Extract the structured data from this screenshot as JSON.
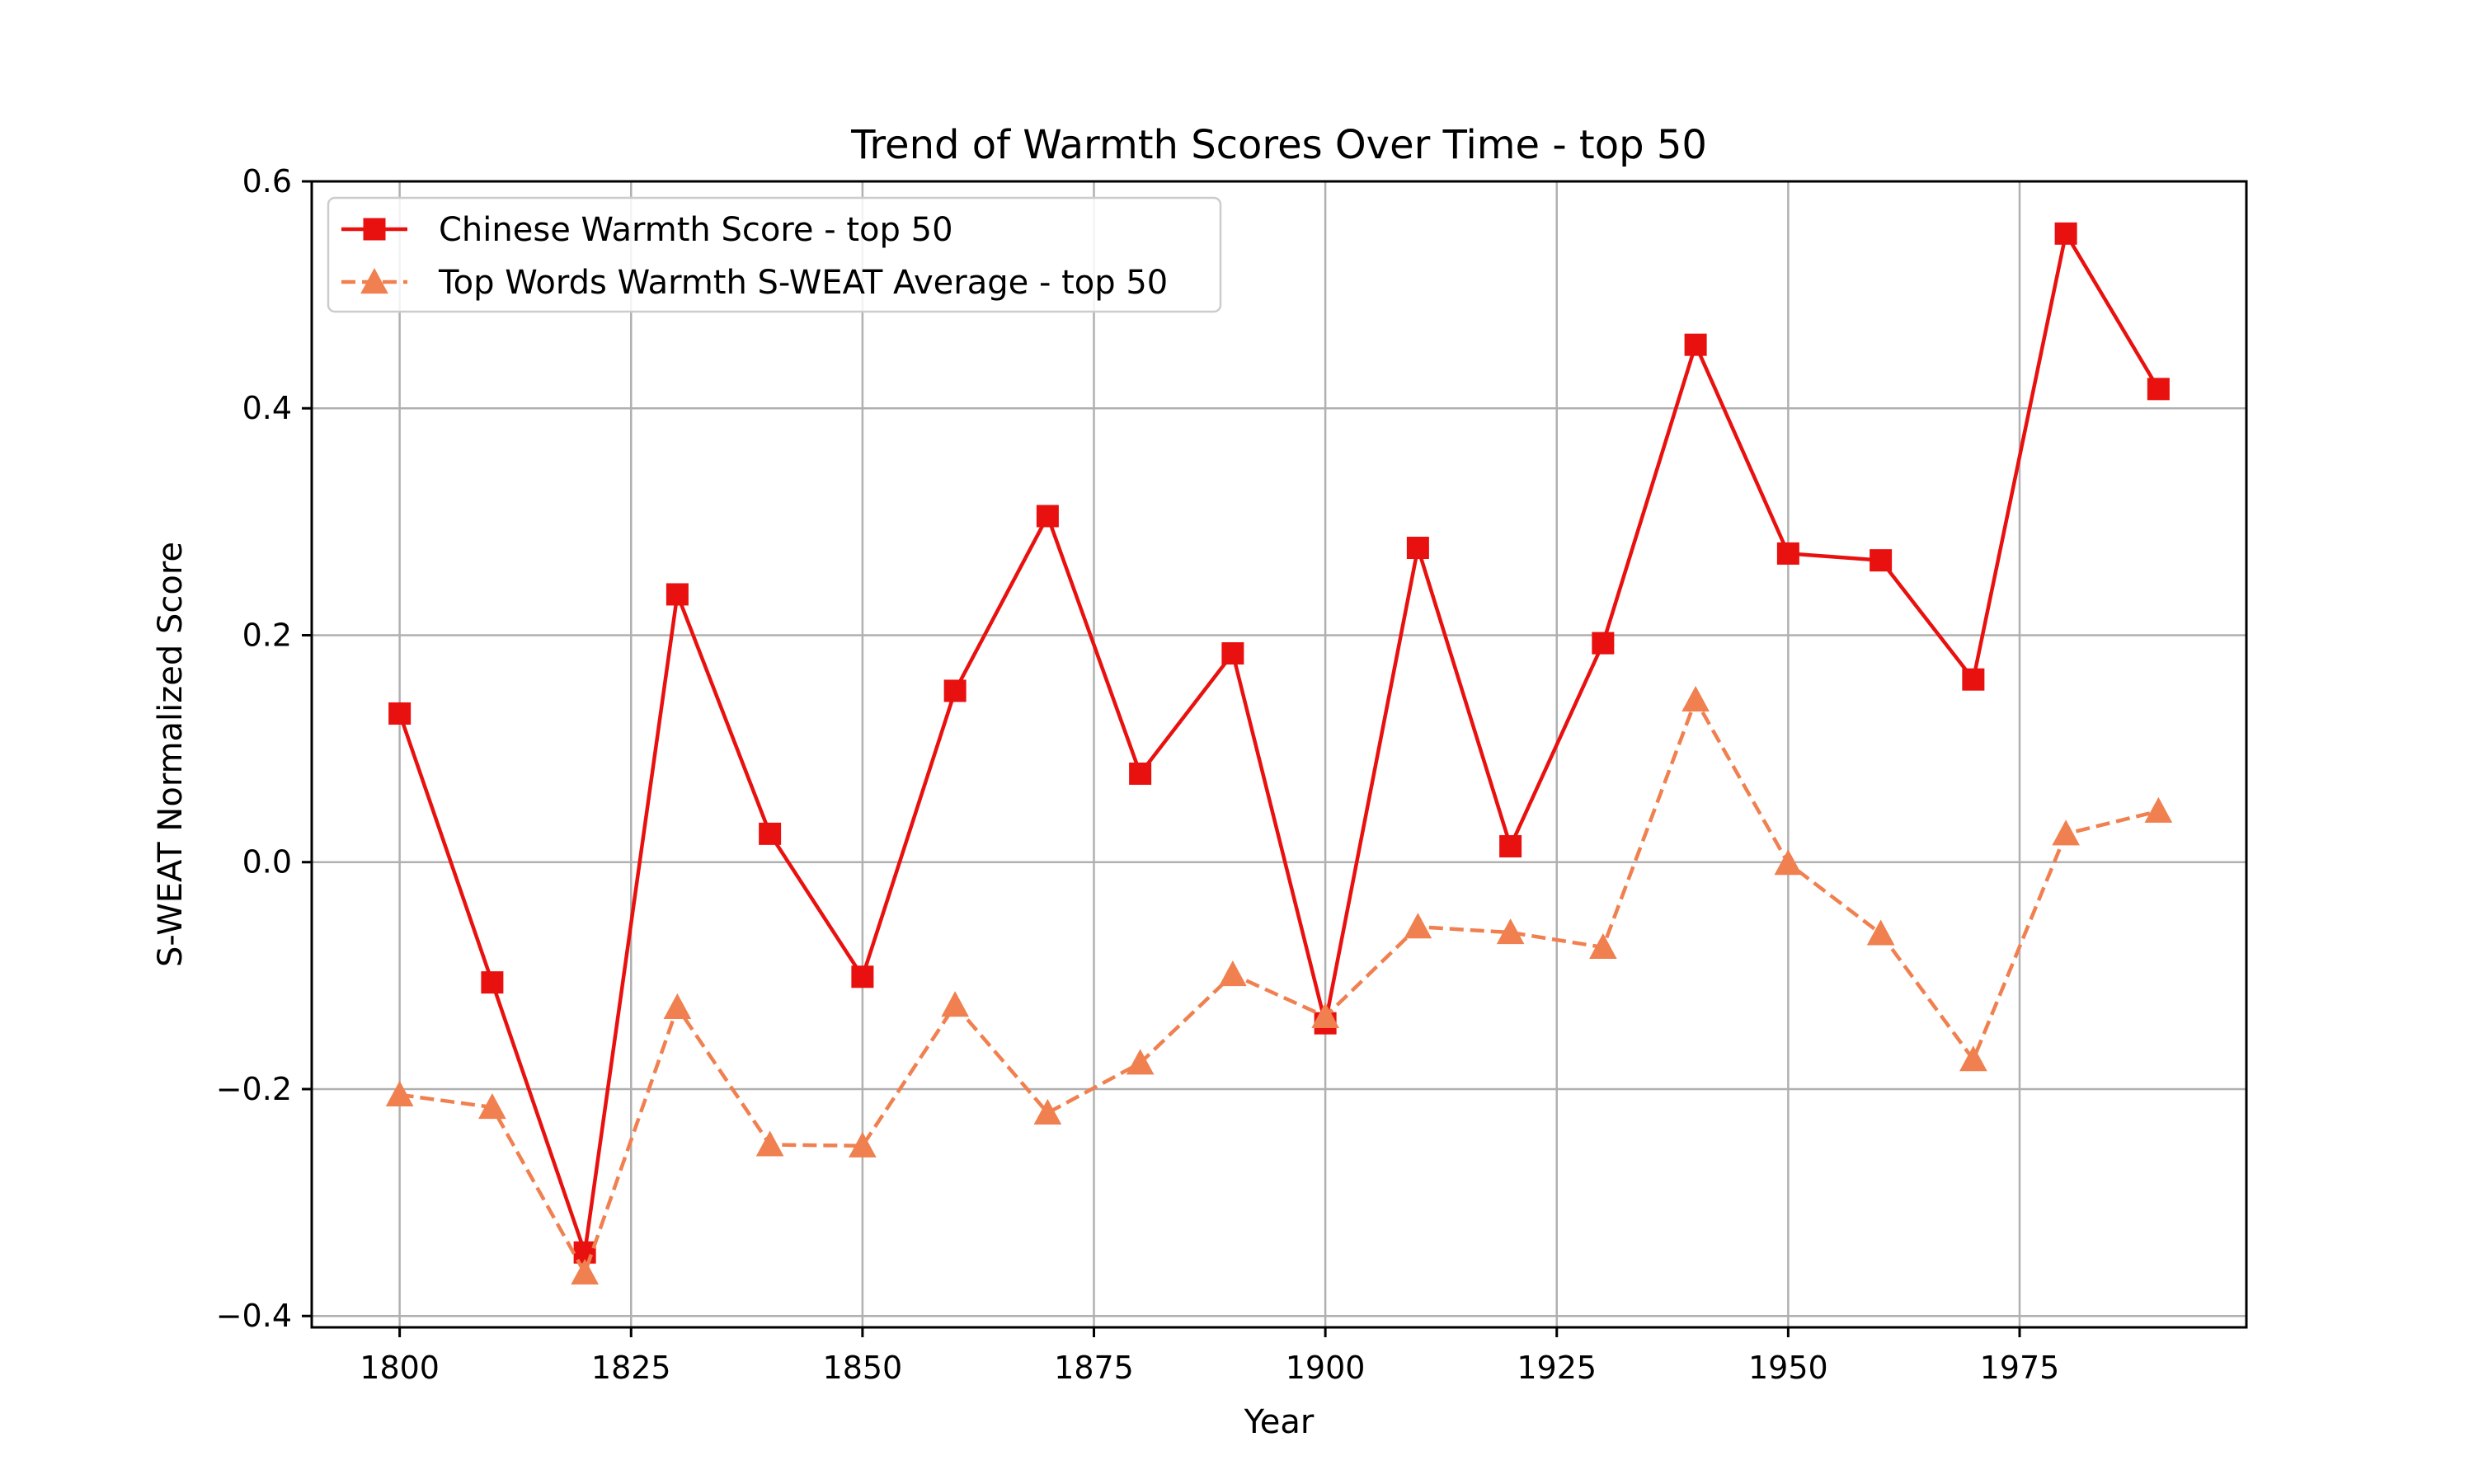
{
  "chart_data": {
    "type": "line",
    "title": "Trend of Warmth Scores Over Time - top 50",
    "xlabel": "Year",
    "ylabel": "S-WEAT Normalized Score",
    "xlim": [
      1790.5,
      1999.5
    ],
    "ylim": [
      -0.41,
      0.6
    ],
    "xticks": [
      1800,
      1825,
      1850,
      1875,
      1900,
      1925,
      1950,
      1975
    ],
    "yticks": [
      -0.4,
      -0.2,
      0.0,
      0.2,
      0.4,
      0.6
    ],
    "ytick_labels": [
      "−0.4",
      "−0.2",
      "0.0",
      "0.2",
      "0.4",
      "0.6"
    ],
    "grid": true,
    "legend_position": "top-left",
    "x": [
      1800,
      1810,
      1820,
      1830,
      1840,
      1850,
      1860,
      1870,
      1880,
      1890,
      1900,
      1910,
      1920,
      1930,
      1940,
      1950,
      1960,
      1970,
      1980,
      1990
    ],
    "series": [
      {
        "name": "Chinese Warmth Score - top 50",
        "color": "#e8110f",
        "marker": "square",
        "linestyle": "solid",
        "values": [
          0.131,
          -0.106,
          -0.344,
          0.236,
          0.025,
          -0.101,
          0.151,
          0.305,
          0.078,
          0.184,
          -0.142,
          0.277,
          0.014,
          0.193,
          0.456,
          0.272,
          0.266,
          0.161,
          0.554,
          0.417
        ]
      },
      {
        "name": "Top Words Warmth S-WEAT Average - top 50",
        "color": "#f08050",
        "marker": "triangle",
        "linestyle": "dashed",
        "values": [
          -0.205,
          -0.216,
          -0.362,
          -0.128,
          -0.249,
          -0.25,
          -0.126,
          -0.221,
          -0.177,
          -0.099,
          -0.136,
          -0.057,
          -0.062,
          -0.075,
          0.143,
          -0.001,
          -0.063,
          -0.174,
          0.025,
          0.045
        ]
      }
    ]
  }
}
